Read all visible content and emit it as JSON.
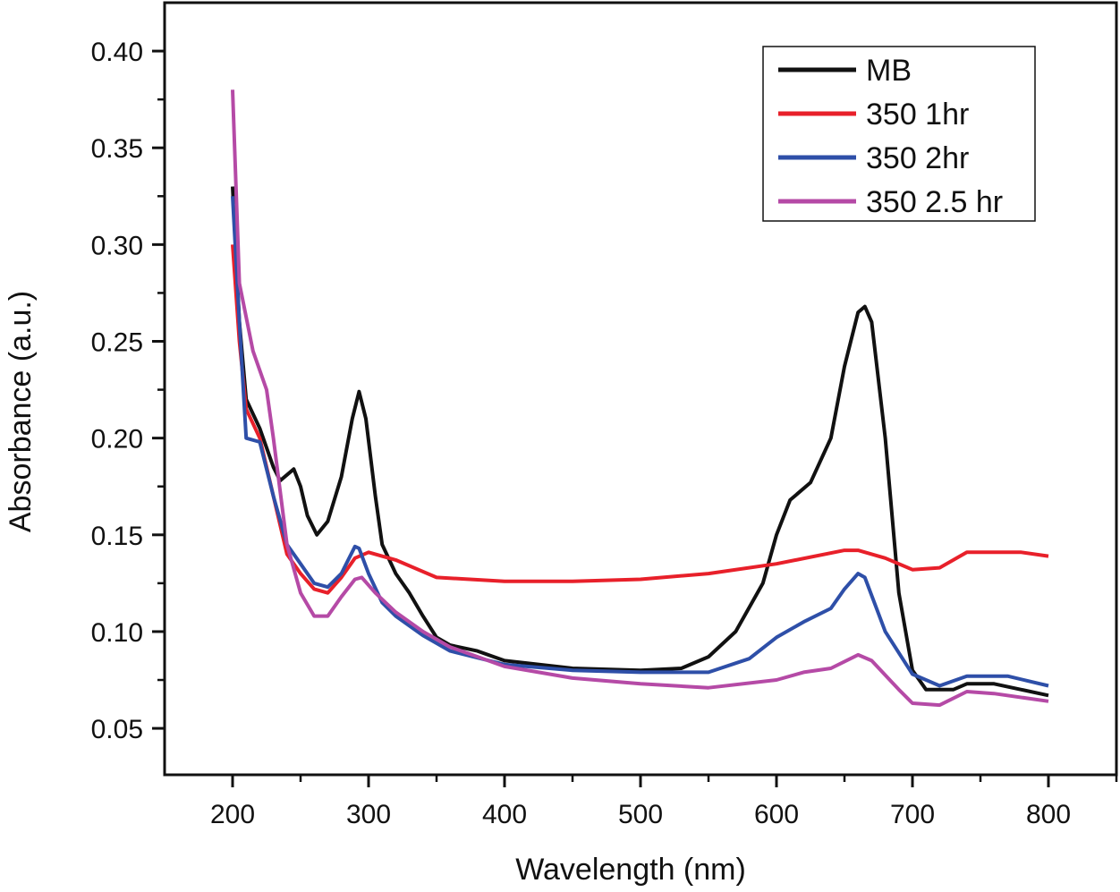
{
  "chart_data": {
    "type": "line",
    "title": "",
    "xlabel": "Wavelength (nm)",
    "ylabel": "Absorbance (a.u.)",
    "xlim": [
      150,
      850
    ],
    "ylim": [
      0.026,
      0.425
    ],
    "xticks": [
      200,
      300,
      400,
      500,
      600,
      700,
      800
    ],
    "xtick_labels": [
      "200",
      "300",
      "400",
      "500",
      "600",
      "700",
      "800"
    ],
    "yticks": [
      0.05,
      0.1,
      0.15,
      0.2,
      0.25,
      0.3,
      0.35,
      0.4
    ],
    "ytick_labels": [
      "0.05",
      "0.10",
      "0.15",
      "0.20",
      "0.25",
      "0.30",
      "0.35",
      "0.40"
    ],
    "grid": false,
    "legend_position": "top-right",
    "series": [
      {
        "name": "MB",
        "color": "#111111",
        "x": [
          200,
          205,
          210,
          220,
          230,
          235,
          245,
          250,
          255,
          262,
          270,
          280,
          288,
          293,
          298,
          305,
          310,
          320,
          330,
          340,
          350,
          360,
          380,
          400,
          450,
          500,
          530,
          550,
          570,
          590,
          600,
          610,
          625,
          640,
          650,
          660,
          665,
          670,
          680,
          690,
          700,
          710,
          730,
          740,
          760,
          780,
          800
        ],
        "y": [
          0.33,
          0.26,
          0.22,
          0.205,
          0.185,
          0.178,
          0.184,
          0.175,
          0.16,
          0.15,
          0.157,
          0.18,
          0.21,
          0.224,
          0.21,
          0.17,
          0.145,
          0.13,
          0.12,
          0.108,
          0.097,
          0.093,
          0.09,
          0.085,
          0.081,
          0.08,
          0.081,
          0.087,
          0.1,
          0.125,
          0.15,
          0.168,
          0.177,
          0.2,
          0.237,
          0.265,
          0.268,
          0.26,
          0.2,
          0.12,
          0.08,
          0.07,
          0.07,
          0.073,
          0.073,
          0.07,
          0.067
        ]
      },
      {
        "name": "350 1hr",
        "color": "#e8202a",
        "x": [
          200,
          205,
          210,
          220,
          230,
          240,
          250,
          260,
          270,
          280,
          290,
          300,
          320,
          350,
          400,
          450,
          500,
          550,
          600,
          650,
          660,
          680,
          700,
          720,
          740,
          780,
          800
        ],
        "y": [
          0.3,
          0.25,
          0.215,
          0.2,
          0.17,
          0.14,
          0.13,
          0.122,
          0.12,
          0.128,
          0.138,
          0.141,
          0.137,
          0.128,
          0.126,
          0.126,
          0.127,
          0.13,
          0.135,
          0.142,
          0.142,
          0.138,
          0.132,
          0.133,
          0.141,
          0.141,
          0.139
        ]
      },
      {
        "name": "350 2hr",
        "color": "#2e4fa8",
        "x": [
          200,
          205,
          210,
          220,
          230,
          240,
          250,
          260,
          270,
          280,
          290,
          293,
          300,
          310,
          320,
          340,
          360,
          400,
          450,
          500,
          550,
          580,
          600,
          620,
          640,
          650,
          660,
          665,
          680,
          700,
          720,
          740,
          770,
          800
        ],
        "y": [
          0.325,
          0.26,
          0.2,
          0.198,
          0.17,
          0.145,
          0.135,
          0.125,
          0.123,
          0.13,
          0.144,
          0.143,
          0.13,
          0.115,
          0.108,
          0.098,
          0.09,
          0.083,
          0.08,
          0.079,
          0.079,
          0.086,
          0.097,
          0.105,
          0.112,
          0.122,
          0.13,
          0.128,
          0.1,
          0.078,
          0.072,
          0.077,
          0.077,
          0.072
        ]
      },
      {
        "name": "350 2.5 hr",
        "color": "#b54aa6",
        "x": [
          200,
          205,
          215,
          225,
          230,
          240,
          250,
          260,
          270,
          280,
          290,
          295,
          305,
          320,
          340,
          360,
          400,
          450,
          500,
          550,
          600,
          620,
          640,
          660,
          670,
          690,
          700,
          720,
          740,
          760,
          800
        ],
        "y": [
          0.38,
          0.28,
          0.245,
          0.225,
          0.2,
          0.145,
          0.12,
          0.108,
          0.108,
          0.118,
          0.127,
          0.128,
          0.12,
          0.11,
          0.1,
          0.092,
          0.082,
          0.076,
          0.073,
          0.071,
          0.075,
          0.079,
          0.081,
          0.088,
          0.085,
          0.07,
          0.063,
          0.062,
          0.069,
          0.068,
          0.064
        ]
      }
    ]
  }
}
